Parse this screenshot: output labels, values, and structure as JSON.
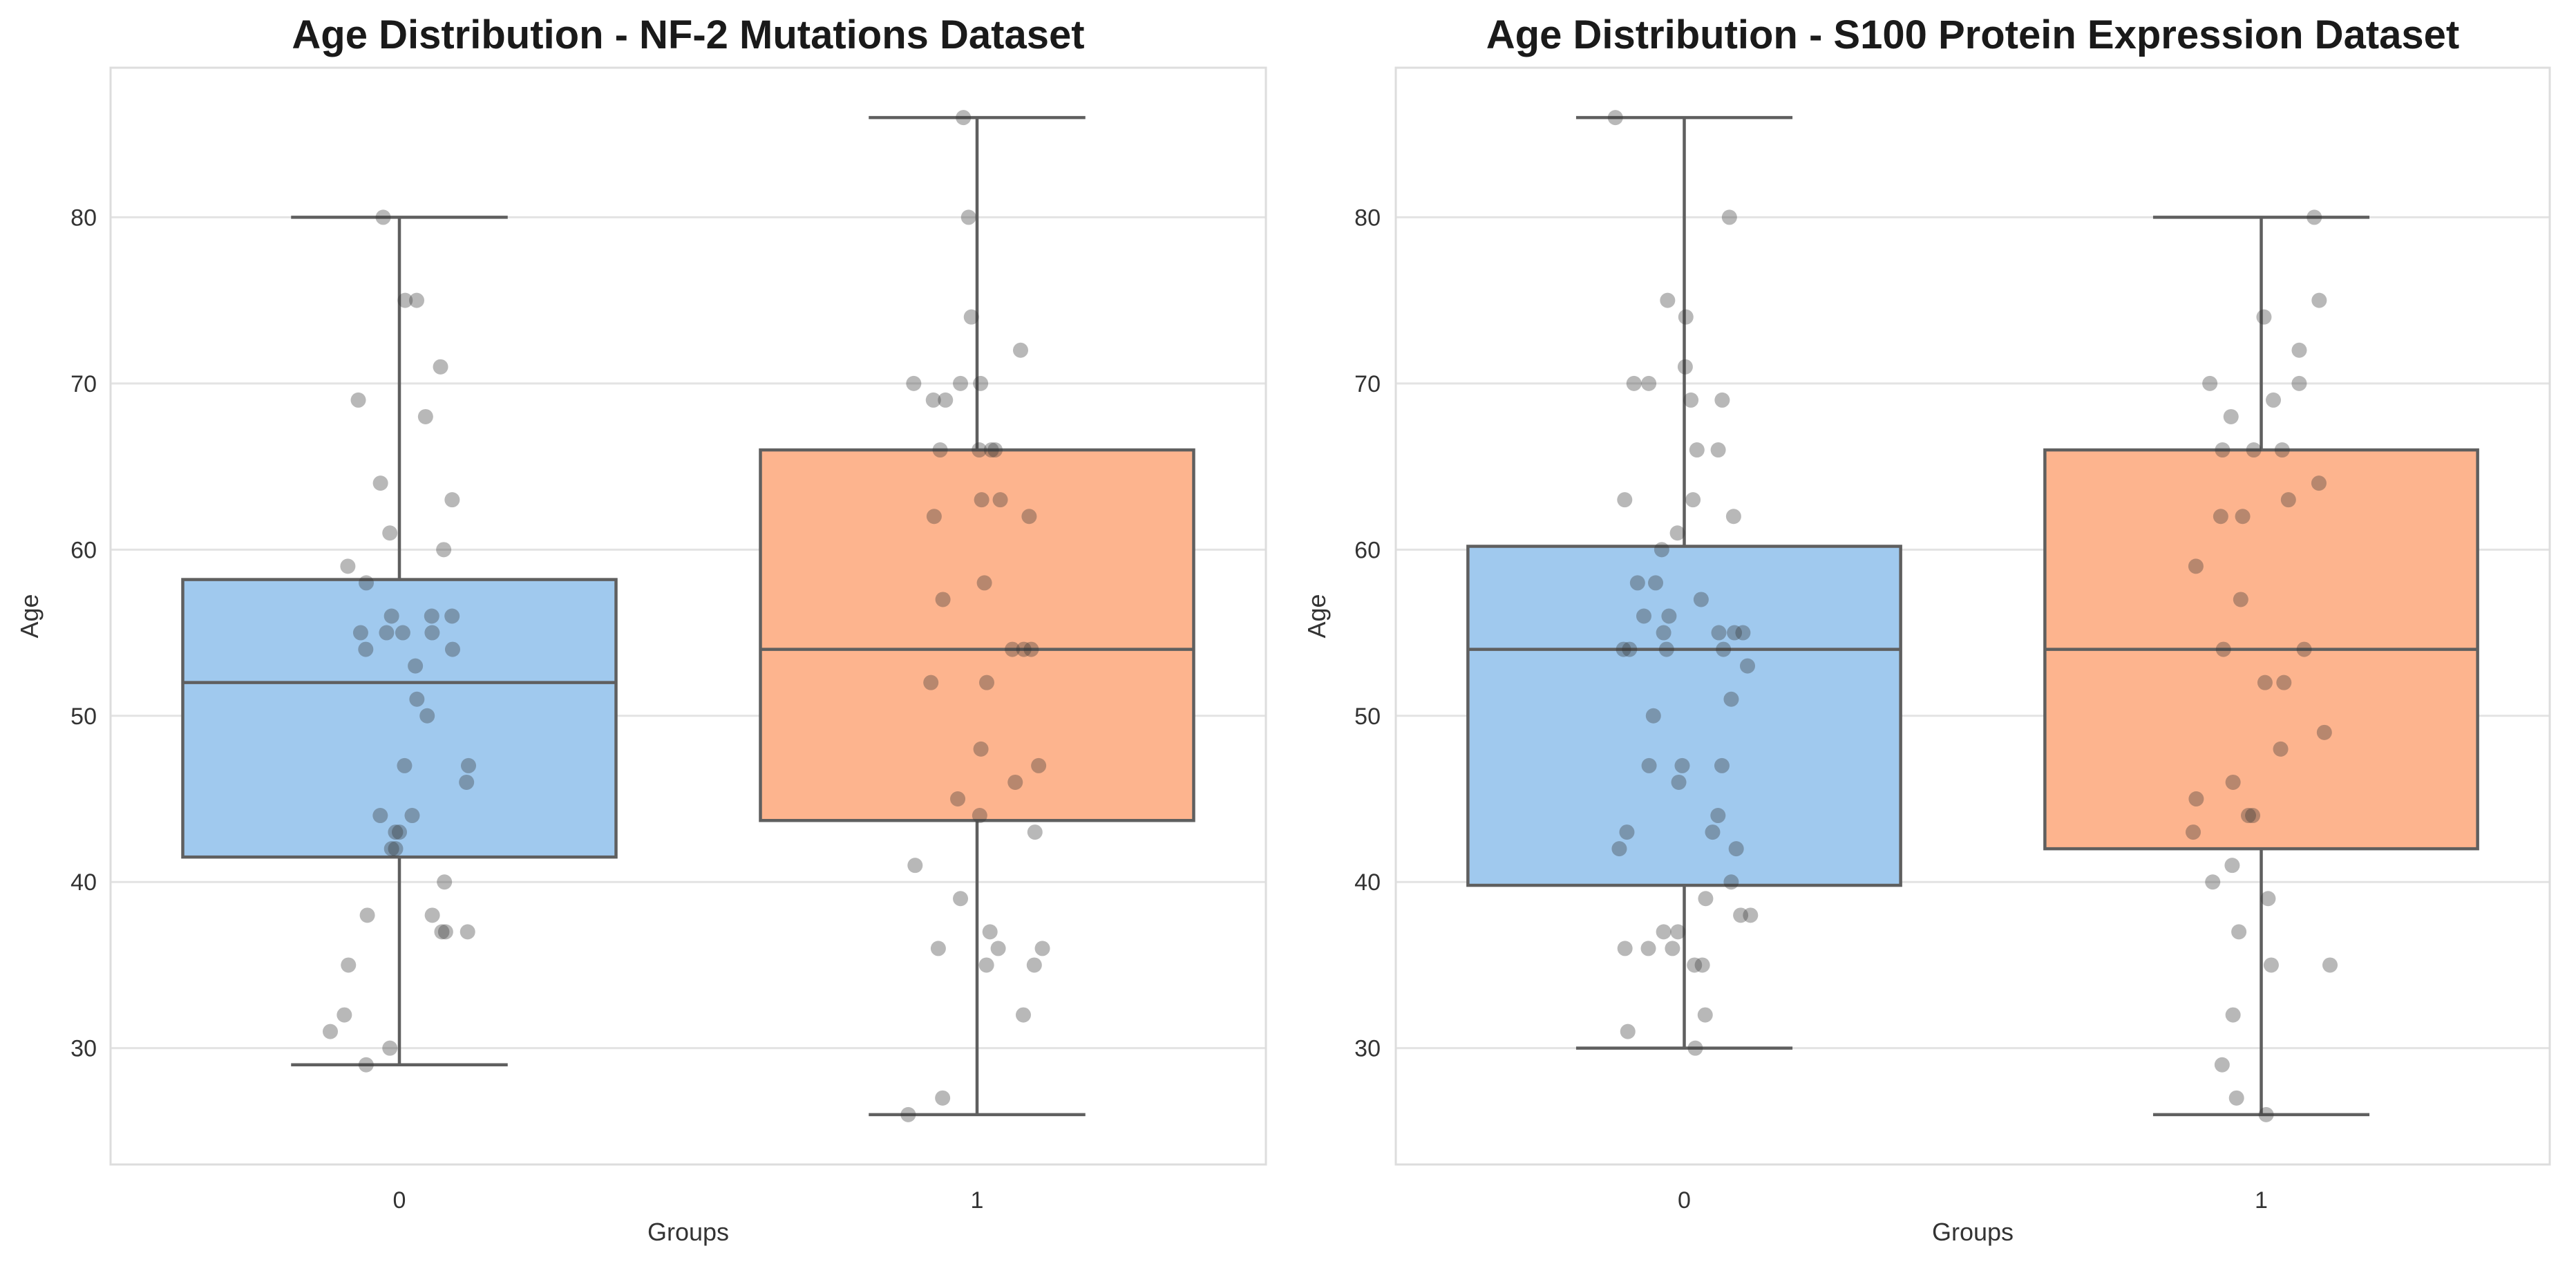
{
  "chart_data": [
    {
      "type": "box",
      "title": "Age Distribution - NF-2 Mutations Dataset",
      "xlabel": "Groups",
      "ylabel": "Age",
      "categories": [
        "0",
        "1"
      ],
      "ylim": [
        23,
        89
      ],
      "yticks": [
        "30",
        "40",
        "50",
        "60",
        "70",
        "80"
      ],
      "grid": true,
      "box_colors": [
        "#a0c9ee",
        "#fdb48e"
      ],
      "boxes": [
        {
          "group": "0",
          "whisker_low": 29,
          "q1": 41.5,
          "median": 52,
          "q3": 58.2,
          "whisker_high": 80
        },
        {
          "group": "1",
          "whisker_low": 26,
          "q1": 43.7,
          "median": 54,
          "q3": 66,
          "whisker_high": 86
        }
      ],
      "points": [
        [
          80,
          75,
          75,
          71,
          69,
          68,
          64,
          63,
          61,
          60,
          59,
          58,
          56,
          56,
          56,
          55,
          55,
          55,
          55,
          54,
          54,
          53,
          51,
          50,
          47,
          47,
          46,
          44,
          44,
          43,
          43,
          42,
          42,
          40,
          38,
          38,
          37,
          37,
          37,
          35,
          32,
          31,
          30,
          29
        ],
        [
          86,
          80,
          74,
          72,
          70,
          70,
          70,
          69,
          69,
          66,
          66,
          66,
          66,
          63,
          63,
          62,
          62,
          58,
          57,
          54,
          54,
          54,
          52,
          52,
          48,
          47,
          46,
          45,
          44,
          43,
          41,
          39,
          37,
          36,
          36,
          36,
          35,
          35,
          32,
          27,
          26
        ]
      ]
    },
    {
      "type": "box",
      "title": "Age Distribution - S100 Protein Expression Dataset",
      "xlabel": "Groups",
      "ylabel": "Age",
      "categories": [
        "0",
        "1"
      ],
      "ylim": [
        23,
        89
      ],
      "yticks": [
        "30",
        "40",
        "50",
        "60",
        "70",
        "80"
      ],
      "grid": true,
      "box_colors": [
        "#a0c9ee",
        "#fdb48e"
      ],
      "boxes": [
        {
          "group": "0",
          "whisker_low": 30,
          "q1": 39.8,
          "median": 54,
          "q3": 60.2,
          "whisker_high": 86
        },
        {
          "group": "1",
          "whisker_low": 26,
          "q1": 42,
          "median": 54,
          "q3": 66,
          "whisker_high": 80
        }
      ],
      "points": [
        [
          86,
          80,
          75,
          74,
          71,
          70,
          70,
          69,
          69,
          66,
          66,
          63,
          63,
          62,
          61,
          60,
          58,
          58,
          57,
          56,
          56,
          55,
          55,
          55,
          55,
          54,
          54,
          54,
          54,
          53,
          51,
          50,
          47,
          47,
          47,
          46,
          44,
          43,
          43,
          42,
          42,
          40,
          39,
          38,
          38,
          37,
          37,
          36,
          36,
          36,
          35,
          35,
          32,
          31,
          30
        ],
        [
          80,
          75,
          74,
          72,
          70,
          70,
          69,
          68,
          66,
          66,
          66,
          64,
          63,
          62,
          62,
          59,
          57,
          54,
          54,
          52,
          52,
          49,
          48,
          46,
          45,
          44,
          44,
          43,
          41,
          40,
          39,
          37,
          35,
          35,
          32,
          29,
          27,
          26
        ]
      ]
    }
  ]
}
